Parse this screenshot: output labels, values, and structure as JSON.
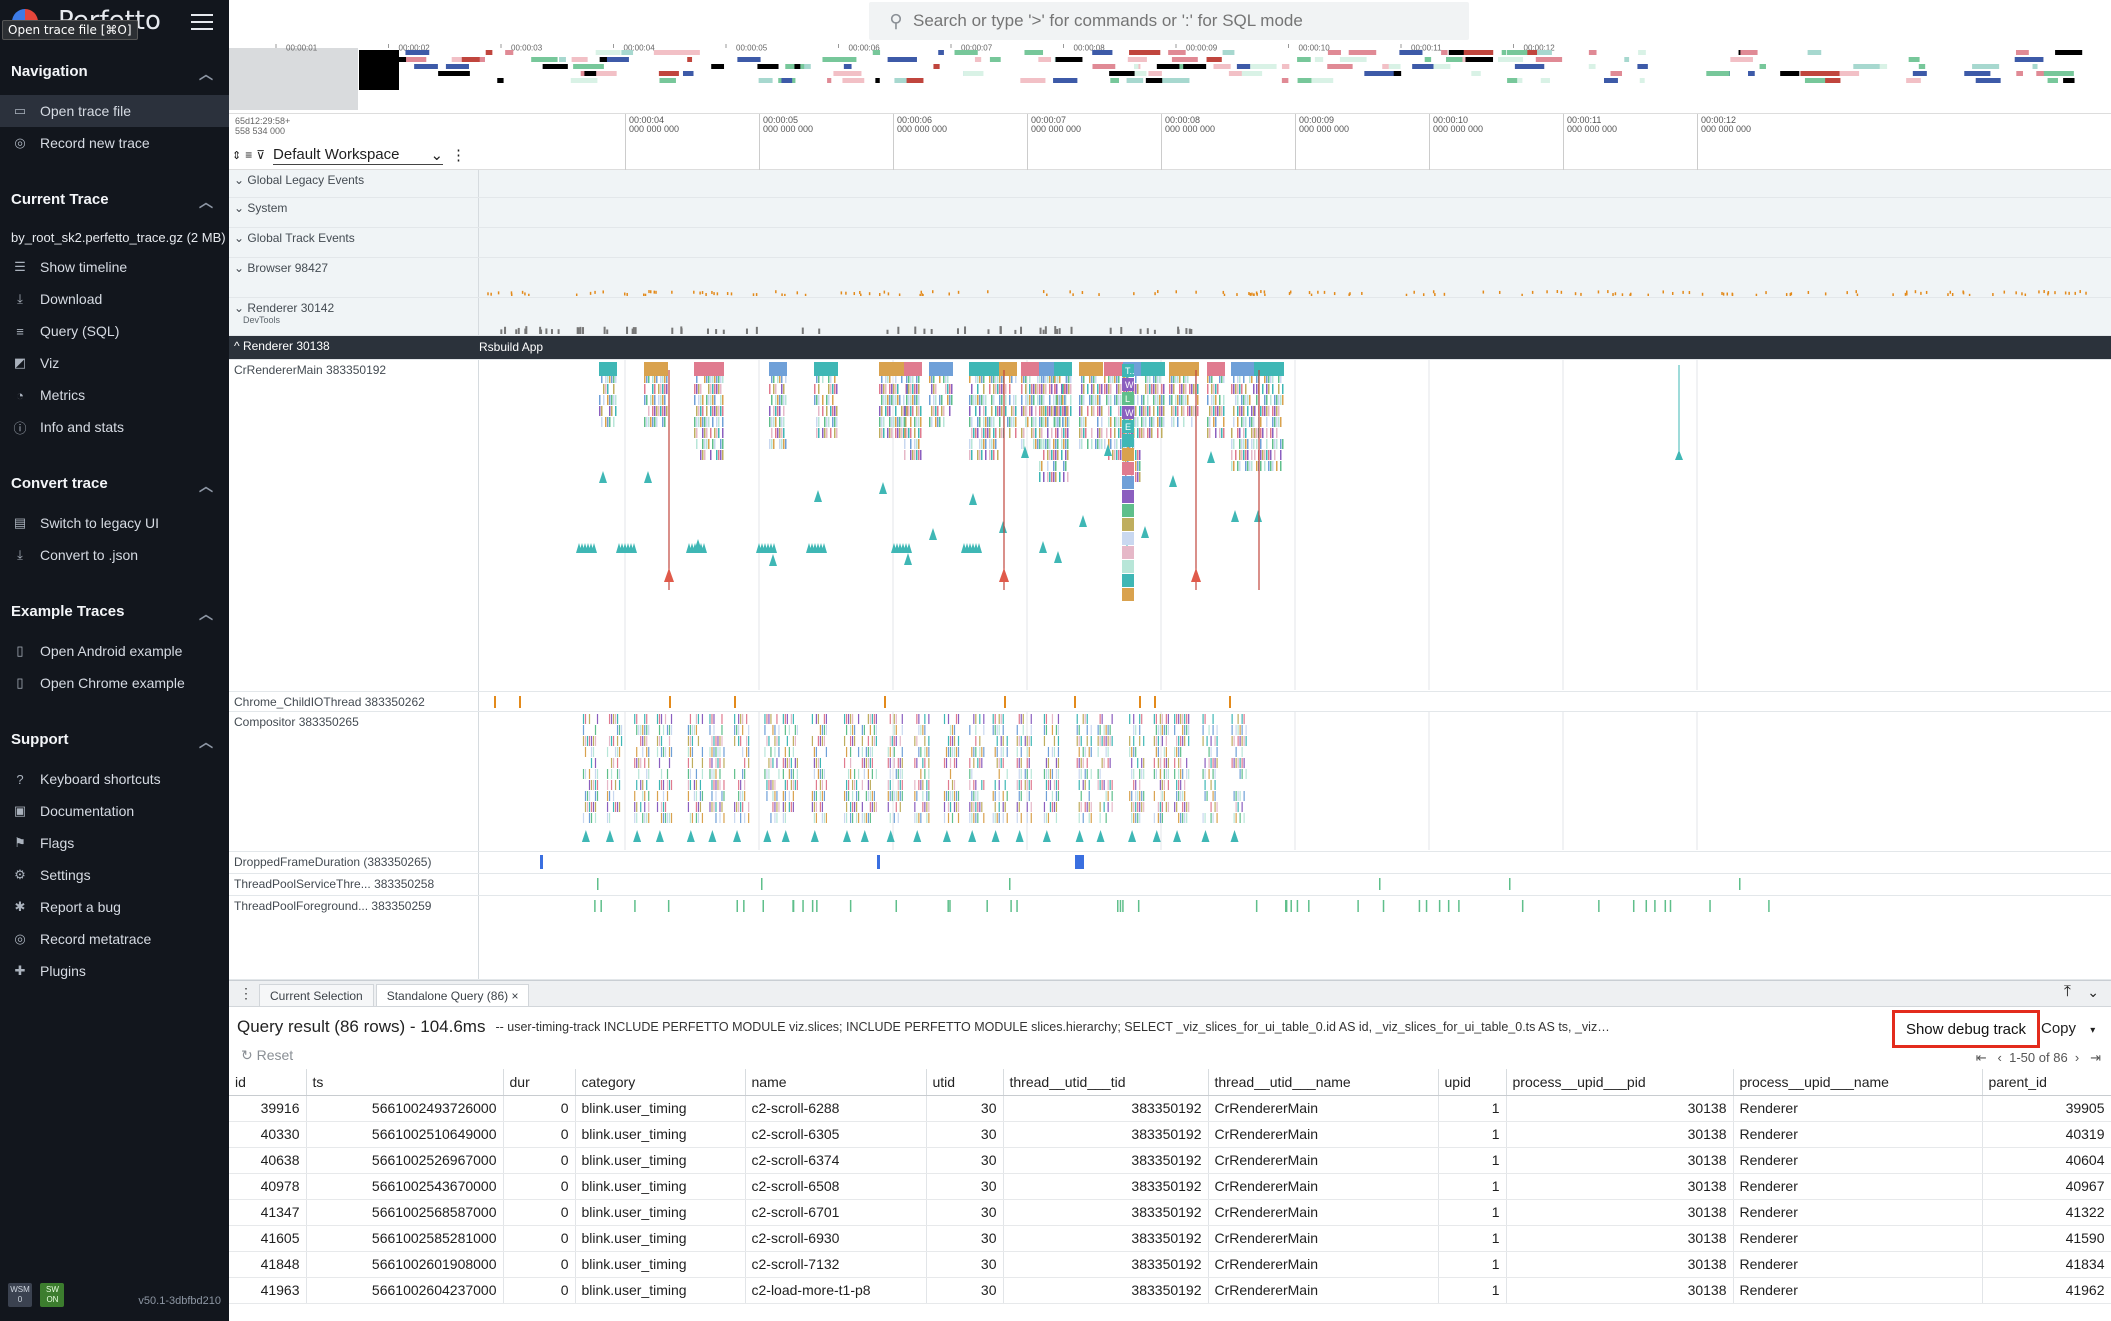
{
  "sidebar": {
    "brand": "Perfetto",
    "tooltip": "Open trace file [⌘O]",
    "navigation": {
      "title": "Navigation",
      "items": [
        {
          "label": "Open trace file",
          "icon": "folder-open-icon"
        },
        {
          "label": "Record new trace",
          "icon": "record-icon"
        }
      ]
    },
    "current_trace": {
      "title": "Current Trace",
      "file": "by_root_sk2.perfetto_trace.gz (2 MB)",
      "items": [
        {
          "label": "Show timeline",
          "icon": "timeline-icon"
        },
        {
          "label": "Download",
          "icon": "download-icon"
        },
        {
          "label": "Query (SQL)",
          "icon": "database-icon"
        },
        {
          "label": "Viz",
          "icon": "chart-icon"
        },
        {
          "label": "Metrics",
          "icon": "speed-icon"
        },
        {
          "label": "Info and stats",
          "icon": "info-icon"
        }
      ]
    },
    "convert": {
      "title": "Convert trace",
      "items": [
        {
          "label": "Switch to legacy UI",
          "icon": "filter-icon"
        },
        {
          "label": "Convert to .json",
          "icon": "download-icon"
        }
      ]
    },
    "examples": {
      "title": "Example Traces",
      "items": [
        {
          "label": "Open Android example",
          "icon": "file-icon"
        },
        {
          "label": "Open Chrome example",
          "icon": "file-icon"
        }
      ]
    },
    "support": {
      "title": "Support",
      "items": [
        {
          "label": "Keyboard shortcuts",
          "icon": "help-icon"
        },
        {
          "label": "Documentation",
          "icon": "book-icon"
        },
        {
          "label": "Flags",
          "icon": "flag-icon"
        },
        {
          "label": "Settings",
          "icon": "gear-icon"
        },
        {
          "label": "Report a bug",
          "icon": "bug-icon"
        },
        {
          "label": "Record metatrace",
          "icon": "record-icon"
        },
        {
          "label": "Plugins",
          "icon": "extension-icon"
        }
      ]
    },
    "wsm": "WSM",
    "wsm_val": "0",
    "sw": "SW",
    "sw_val": "ON",
    "version": "v50.1-3dbfbd210"
  },
  "search": {
    "placeholder": "Search or type '>' for commands or ':' for SQL mode"
  },
  "overview_ticks": [
    "00:00:01",
    "00:00:02",
    "00:00:03",
    "00:00:04",
    "00:00:05",
    "00:00:06",
    "00:00:07",
    "00:00:08",
    "00:00:09",
    "00:00:10",
    "00:00:11",
    "00:00:12"
  ],
  "timeaxis": {
    "origin": "65d12:29:58+",
    "origin2": "558 534 000",
    "ticks": [
      {
        "a": "00:00:04",
        "b": "000 000 000"
      },
      {
        "a": "00:00:05",
        "b": "000 000 000"
      },
      {
        "a": "00:00:06",
        "b": "000 000 000"
      },
      {
        "a": "00:00:07",
        "b": "000 000 000"
      },
      {
        "a": "00:00:08",
        "b": "000 000 000"
      },
      {
        "a": "00:00:09",
        "b": "000 000 000"
      },
      {
        "a": "00:00:10",
        "b": "000 000 000"
      },
      {
        "a": "00:00:11",
        "b": "000 000 000"
      },
      {
        "a": "00:00:12",
        "b": "000 000 000"
      }
    ]
  },
  "workspace": "Default Workspace",
  "tracks": {
    "t1": "Global Legacy Events",
    "t2": "System",
    "t3": "Global Track Events",
    "t4": "Browser 98427",
    "t5": "Renderer 30142",
    "t5sub": "DevTools",
    "t6": "Renderer 30138",
    "t6app": "Rsbuild App",
    "t7": "CrRendererMain 383350192",
    "t8": "Chrome_ChildIOThread 383350262",
    "t9": "Compositor 383350265",
    "t10": "DroppedFrameDuration (383350265)",
    "t11": "ThreadPoolServiceThre... 383350258",
    "t12": "ThreadPoolForeground... 383350259"
  },
  "slice_labels": [
    "T..",
    "W",
    "L",
    "W",
    "E"
  ],
  "panel": {
    "tabs": [
      "Current Selection",
      "Standalone Query (86)"
    ],
    "close": "×",
    "title": "Query result (86 rows) - 104.6ms",
    "sql": "-- user-timing-track INCLUDE PERFETTO MODULE viz.slices; INCLUDE PERFETTO MODULE slices.hierarchy; SELECT _viz_slices_for_ui_table_0.id AS id, _viz_slices_for_ui_table_0.ts AS ts, _viz_slices_for_ui_table_0.dur AS dur, _viz_slices_for_ui_table_0.categ...",
    "debug_button": "Show debug track",
    "copy_button": "Copy",
    "reset": "Reset",
    "pager": "1-50 of 86",
    "columns": [
      "id",
      "ts",
      "dur",
      "category",
      "name",
      "utid",
      "thread__utid___tid",
      "thread__utid___name",
      "upid",
      "process__upid___pid",
      "process__upid___name",
      "parent_id"
    ],
    "rows": [
      [
        "39916",
        "5661002493726000",
        "0",
        "blink.user_timing",
        "c2-scroll-6288",
        "30",
        "383350192",
        "CrRendererMain",
        "1",
        "30138",
        "Renderer",
        "39905"
      ],
      [
        "40330",
        "5661002510649000",
        "0",
        "blink.user_timing",
        "c2-scroll-6305",
        "30",
        "383350192",
        "CrRendererMain",
        "1",
        "30138",
        "Renderer",
        "40319"
      ],
      [
        "40638",
        "5661002526967000",
        "0",
        "blink.user_timing",
        "c2-scroll-6374",
        "30",
        "383350192",
        "CrRendererMain",
        "1",
        "30138",
        "Renderer",
        "40604"
      ],
      [
        "40978",
        "5661002543670000",
        "0",
        "blink.user_timing",
        "c2-scroll-6508",
        "30",
        "383350192",
        "CrRendererMain",
        "1",
        "30138",
        "Renderer",
        "40967"
      ],
      [
        "41347",
        "5661002568587000",
        "0",
        "blink.user_timing",
        "c2-scroll-6701",
        "30",
        "383350192",
        "CrRendererMain",
        "1",
        "30138",
        "Renderer",
        "41322"
      ],
      [
        "41605",
        "5661002585281000",
        "0",
        "blink.user_timing",
        "c2-scroll-6930",
        "30",
        "383350192",
        "CrRendererMain",
        "1",
        "30138",
        "Renderer",
        "41590"
      ],
      [
        "41848",
        "5661002601908000",
        "0",
        "blink.user_timing",
        "c2-scroll-7132",
        "30",
        "383350192",
        "CrRendererMain",
        "1",
        "30138",
        "Renderer",
        "41834"
      ],
      [
        "41963",
        "5661002604237000",
        "0",
        "blink.user_timing",
        "c2-load-more-t1-p8",
        "30",
        "383350192",
        "CrRendererMain",
        "1",
        "30138",
        "Renderer",
        "41962"
      ]
    ]
  },
  "colors": {
    "accent_red": "#e32b1c",
    "teal": "#3fb7b5",
    "orange": "#e38a1b",
    "sidebar_bg": "#12161d"
  }
}
